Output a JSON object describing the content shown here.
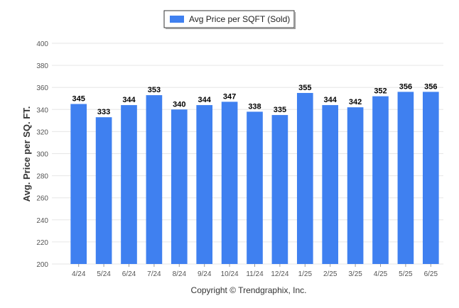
{
  "chart_data": {
    "type": "bar",
    "categories": [
      "4/24",
      "5/24",
      "6/24",
      "7/24",
      "8/24",
      "9/24",
      "10/24",
      "11/24",
      "12/24",
      "1/25",
      "2/25",
      "3/25",
      "4/25",
      "5/25",
      "6/25"
    ],
    "series": [
      {
        "name": "Avg Price per SQFT (Sold)",
        "values": [
          345,
          333,
          344,
          353,
          340,
          344,
          347,
          338,
          335,
          355,
          344,
          342,
          352,
          356,
          356
        ]
      }
    ],
    "ylabel": "Avg. Price per SQ. FT.",
    "xlabel": "",
    "ylim": [
      200,
      400
    ],
    "yticks": [
      200,
      220,
      240,
      260,
      280,
      300,
      320,
      340,
      360,
      380,
      400
    ],
    "grid": true,
    "legend_position": "top-center",
    "data_labels": true
  },
  "colors": {
    "bar": "#3F80F0",
    "grid": "#e6e6e6"
  },
  "footer": {
    "copyright": "Copyright © Trendgraphix, Inc."
  }
}
